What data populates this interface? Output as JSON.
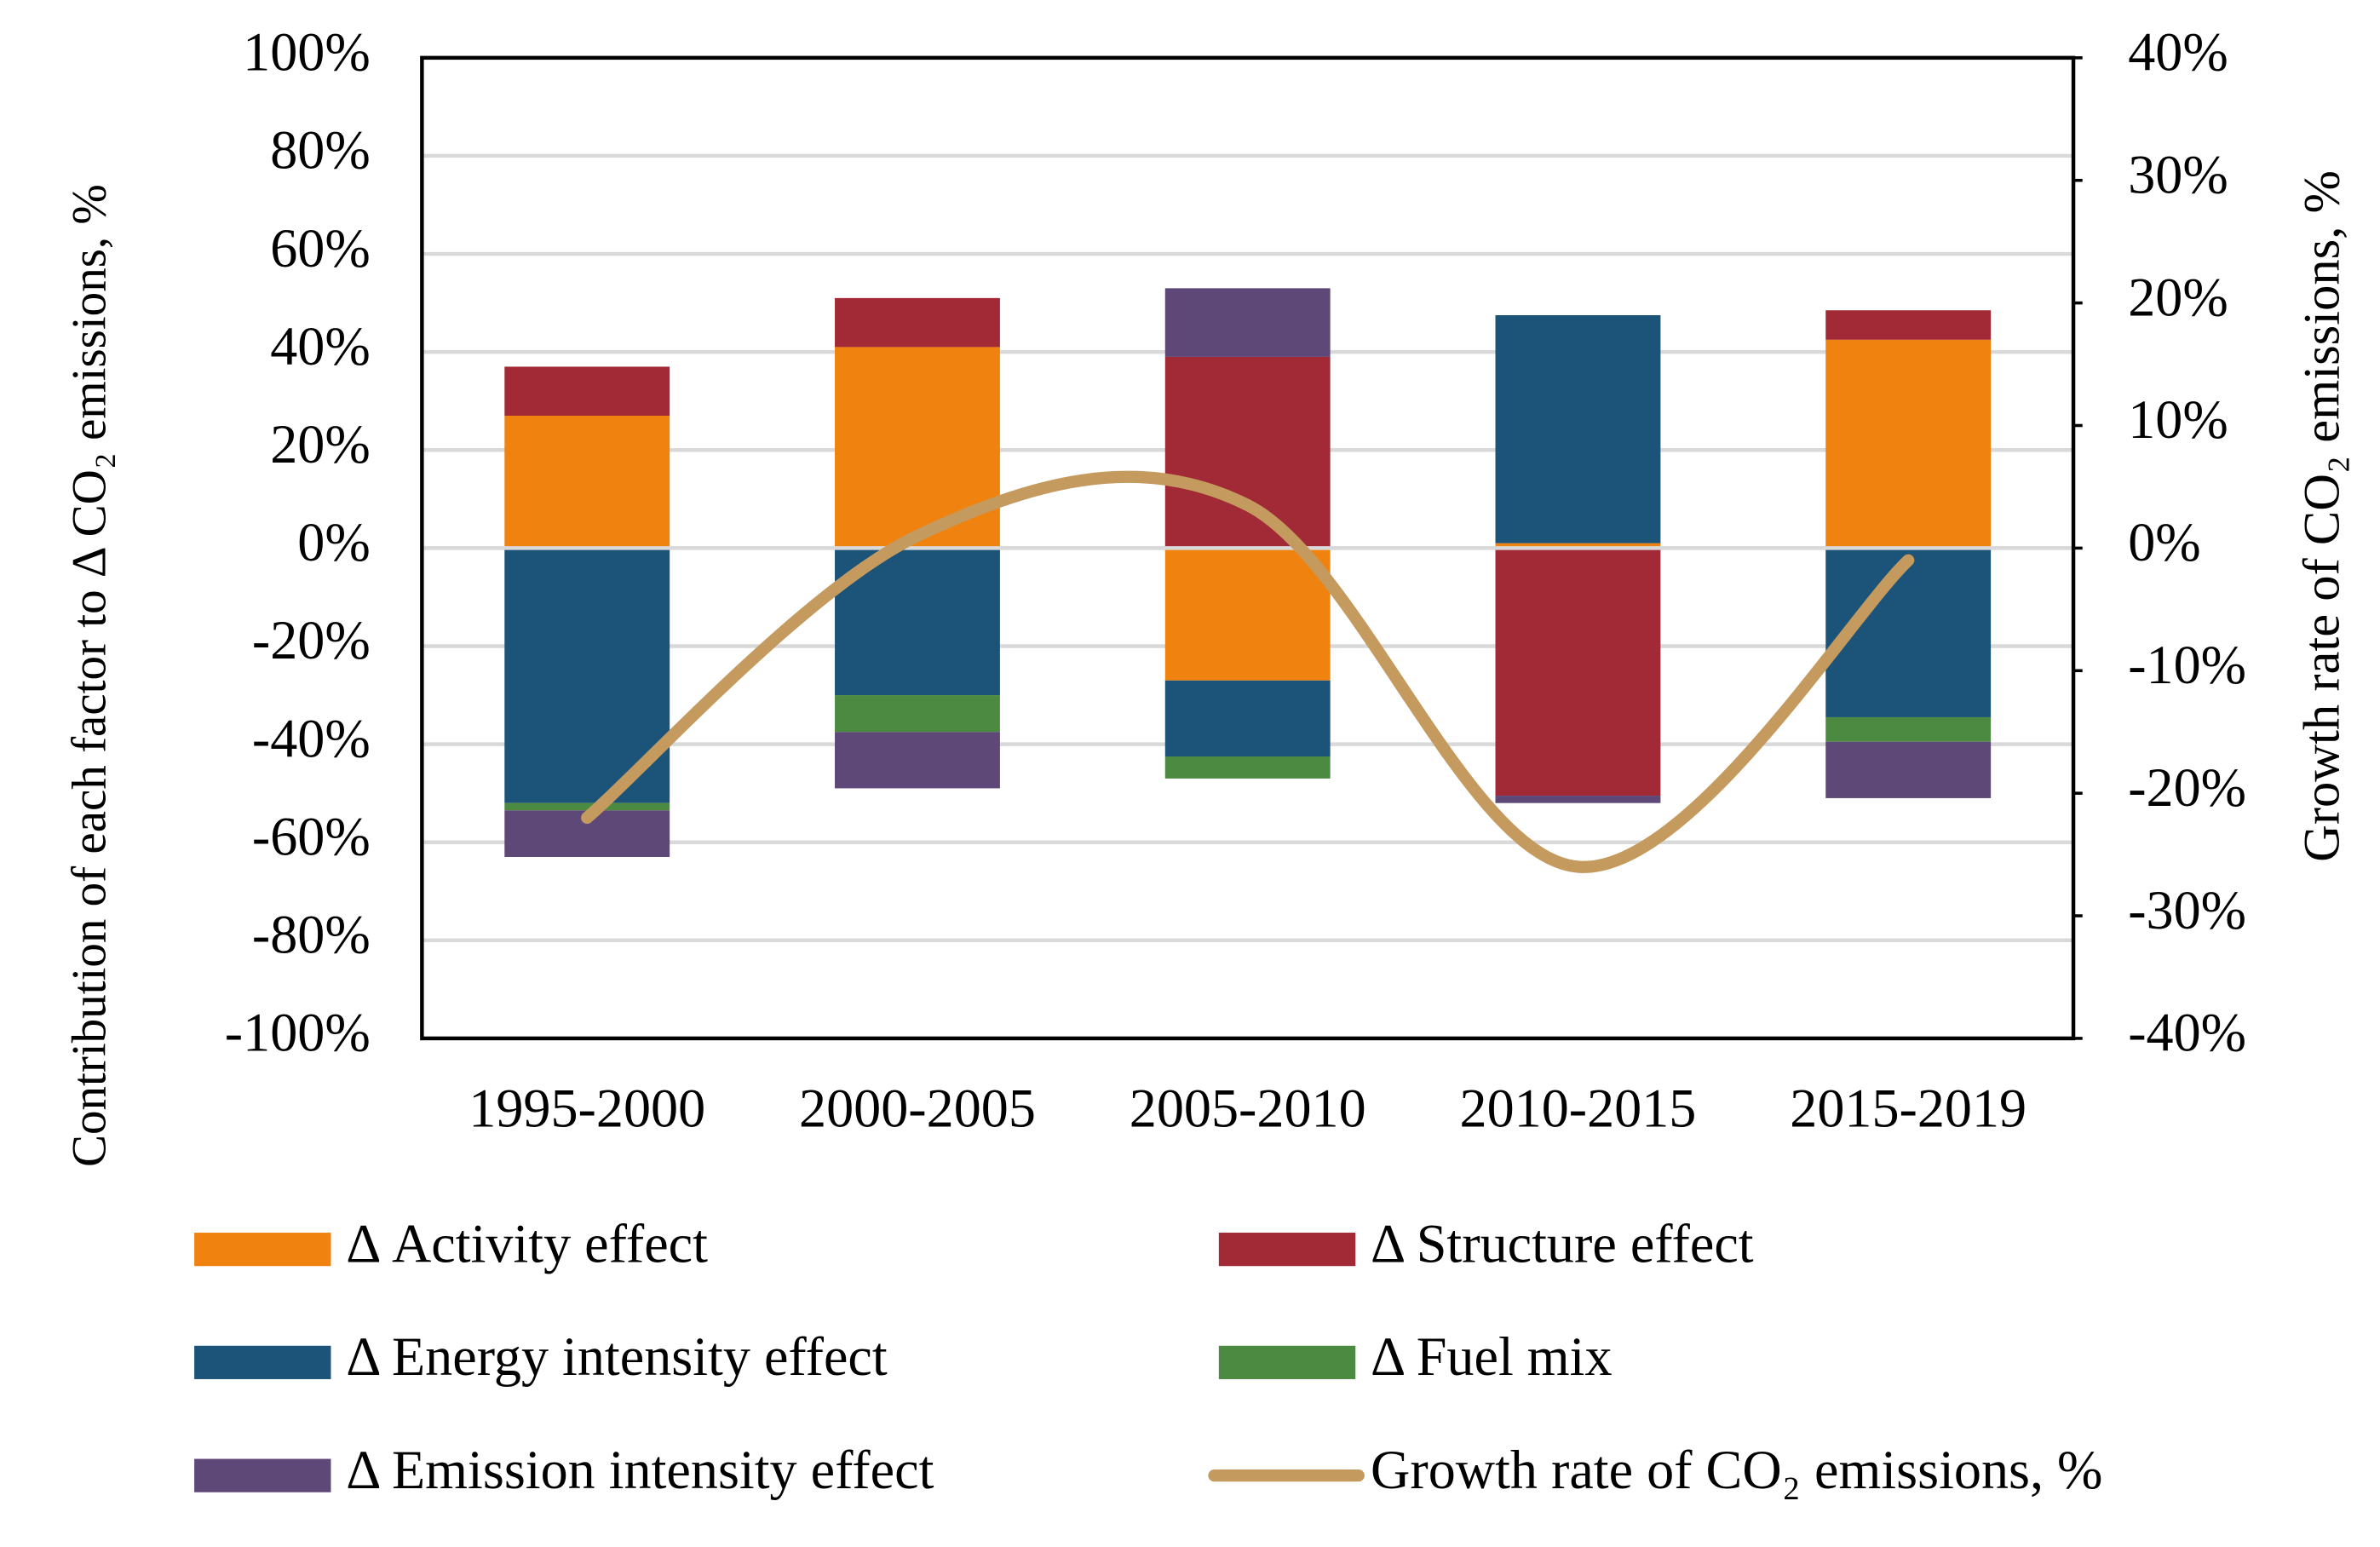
{
  "chart_data": {
    "type": "bar",
    "stacked": true,
    "y_label": "Contribution of each factor to Δ CO₂ emissions, %",
    "y2_label": "Growth rate of CO₂ emissions, %",
    "categories": [
      "1995-2000",
      "2000-2005",
      "2005-2010",
      "2010-2015",
      "2015-2019"
    ],
    "series": [
      {
        "name": "Δ Activity effect",
        "color": "#f0820f",
        "values": [
          27,
          41,
          -27,
          1,
          42.5
        ]
      },
      {
        "name": "Δ Structure effect",
        "color": "#a12a36",
        "values": [
          10,
          10,
          39,
          -50.5,
          6
        ]
      },
      {
        "name": "Δ Energy intensity effect",
        "color": "#1c5479",
        "values": [
          -52,
          -30,
          -15.5,
          46.5,
          -34.5
        ]
      },
      {
        "name": "Δ Fuel mix",
        "color": "#4d8a41",
        "values": [
          -1.5,
          -7.5,
          -4.5,
          0,
          -5
        ]
      },
      {
        "name": "Δ Emission intensity effect",
        "color": "#5e4878",
        "values": [
          -9.5,
          -11.5,
          14,
          -1.5,
          -11.5
        ]
      },
      {
        "name": "Growth rate of CO₂ emissions, %",
        "color": "#c49a5e",
        "type": "line",
        "smooth": true,
        "axis": "y2",
        "values": [
          -22,
          1,
          3.5,
          -26,
          -1
        ]
      }
    ],
    "ylim": [
      -100,
      100
    ],
    "yticks": [
      {
        "value": -100,
        "label": "-100%"
      },
      {
        "value": -80,
        "label": "-80%"
      },
      {
        "value": -60,
        "label": "-60%"
      },
      {
        "value": -40,
        "label": "-40%"
      },
      {
        "value": -20,
        "label": "-20%"
      },
      {
        "value": 0,
        "label": "0%"
      },
      {
        "value": 20,
        "label": "20%"
      },
      {
        "value": 40,
        "label": "40%"
      },
      {
        "value": 60,
        "label": "60%"
      },
      {
        "value": 80,
        "label": "80%"
      },
      {
        "value": 100,
        "label": "100%"
      }
    ],
    "y2lim": [
      -40,
      40
    ],
    "y2ticks": [
      {
        "value": -40,
        "label": "-40%"
      },
      {
        "value": -30,
        "label": "-30%"
      },
      {
        "value": -20,
        "label": "-20%"
      },
      {
        "value": -10,
        "label": "-10%"
      },
      {
        "value": 0,
        "label": "0%"
      },
      {
        "value": 10,
        "label": "10%"
      },
      {
        "value": 20,
        "label": "20%"
      },
      {
        "value": 30,
        "label": "30%"
      },
      {
        "value": 40,
        "label": "40%"
      }
    ],
    "grid": true,
    "legend": "bottom"
  }
}
